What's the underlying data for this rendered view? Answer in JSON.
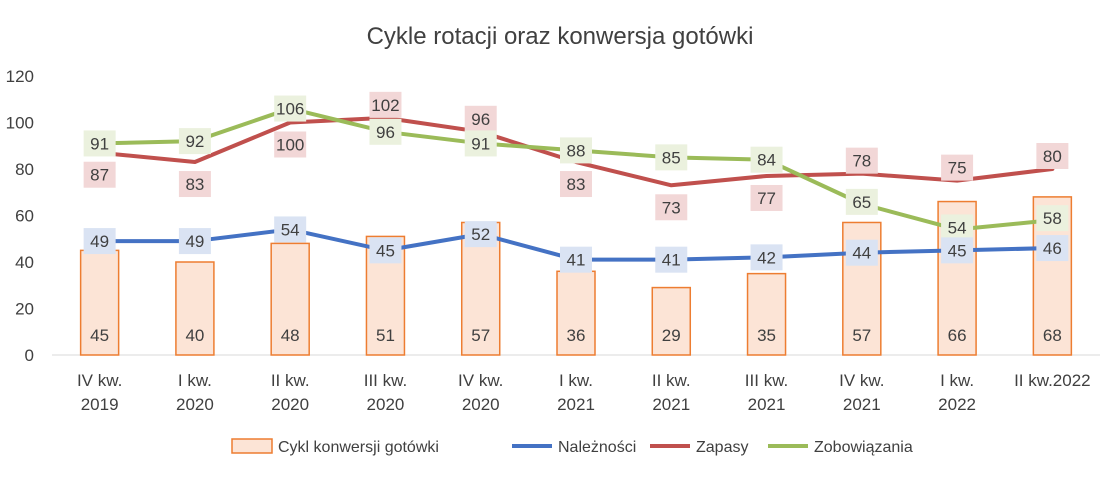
{
  "chart_data": {
    "type": "bar+line",
    "title": "Cykle rotacji oraz konwersja gotówki",
    "categories": [
      [
        "IV kw.",
        "2019"
      ],
      [
        "I kw.",
        "2020"
      ],
      [
        "II kw.",
        "2020"
      ],
      [
        "III kw.",
        "2020"
      ],
      [
        "IV kw.",
        "2020"
      ],
      [
        "I kw.",
        "2021"
      ],
      [
        "II kw.",
        "2021"
      ],
      [
        "III kw.",
        "2021"
      ],
      [
        "IV kw.",
        "2021"
      ],
      [
        "I kw.",
        "2022"
      ],
      [
        "II kw.2022",
        ""
      ]
    ],
    "ylim": [
      0,
      120
    ],
    "yticks": [
      0,
      20,
      40,
      60,
      80,
      100,
      120
    ],
    "grid": false,
    "legend_position": "bottom",
    "series": [
      {
        "name": "Cykl konwersji gotówki",
        "type": "bar",
        "color": "#ED7D31",
        "fill": "#FCE4D6",
        "label_bg": "#FCE4D6",
        "values": [
          45,
          40,
          48,
          51,
          57,
          36,
          29,
          35,
          57,
          66,
          68
        ]
      },
      {
        "name": "Należności",
        "type": "line",
        "color": "#4472C4",
        "label_bg": "#DAE3F3",
        "values": [
          49,
          49,
          54,
          45,
          52,
          41,
          41,
          42,
          44,
          45,
          46
        ]
      },
      {
        "name": "Zapasy",
        "type": "line",
        "color": "#C0504D",
        "label_bg": "#F2D7D7",
        "values": [
          87,
          83,
          100,
          102,
          96,
          83,
          73,
          77,
          78,
          75,
          80
        ]
      },
      {
        "name": "Zobowiązania",
        "type": "line",
        "color": "#9BBB59",
        "label_bg": "#EBF1DE",
        "values": [
          91,
          92,
          106,
          96,
          91,
          88,
          85,
          84,
          65,
          54,
          58
        ]
      }
    ]
  }
}
